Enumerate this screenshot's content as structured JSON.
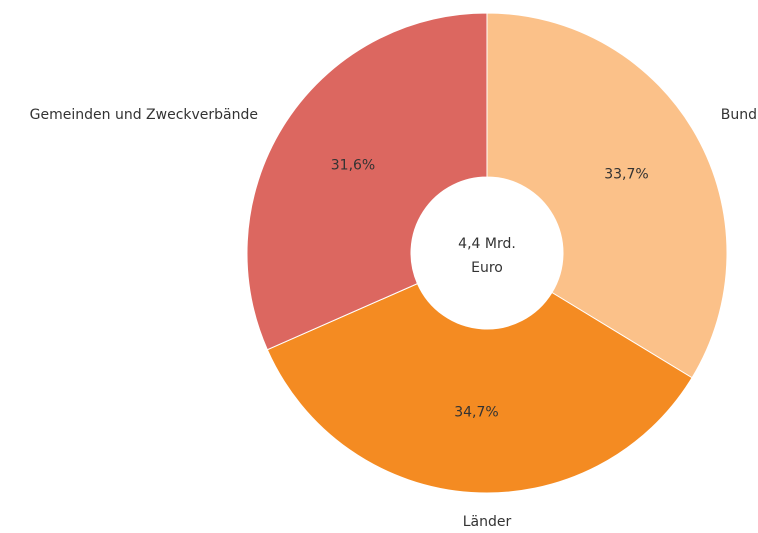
{
  "chart_data": {
    "type": "donut",
    "categories": [
      "Bund",
      "Länder",
      "Gemeinden und Zweckverbände"
    ],
    "values": [
      33.7,
      34.7,
      31.6
    ],
    "value_labels": [
      "33,7%",
      "34,7%",
      "31,6%"
    ],
    "colors": [
      "#fbc189",
      "#f48b22",
      "#dc6760"
    ],
    "center_label": [
      "4,4 Mrd.",
      "Euro"
    ]
  }
}
